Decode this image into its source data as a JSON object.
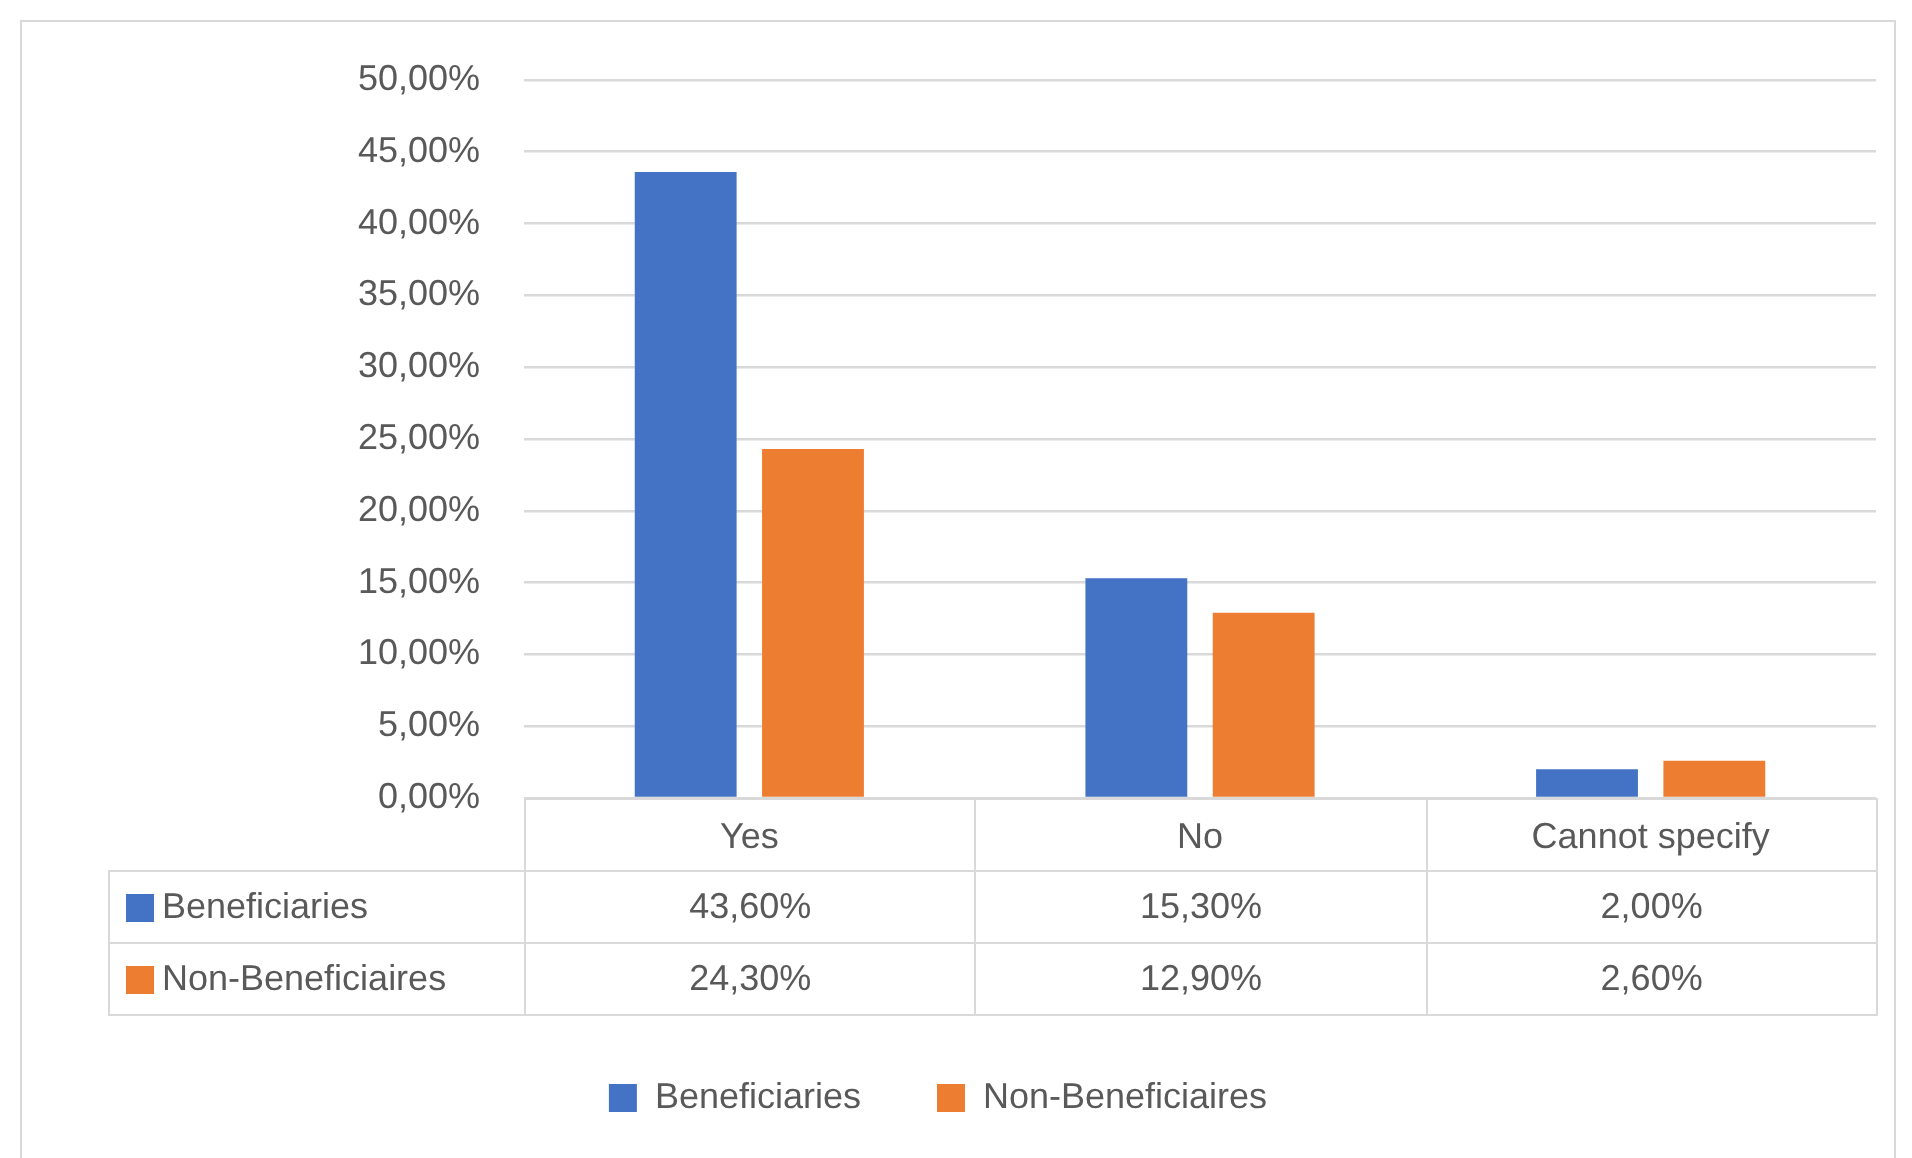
{
  "chart_data": {
    "type": "bar",
    "categories": [
      "Yes",
      "No",
      "Cannot specify"
    ],
    "series": [
      {
        "name": "Beneficiaries",
        "color": "#4472c4",
        "values": [
          43.6,
          15.3,
          2.0
        ],
        "value_labels": [
          "43,60%",
          "15,30%",
          "2,00%"
        ]
      },
      {
        "name": "Non-Beneficiaires",
        "color": "#ed7d31",
        "values": [
          24.3,
          12.9,
          2.6
        ],
        "value_labels": [
          "24,30%",
          "12,90%",
          "2,60%"
        ]
      }
    ],
    "ylim": [
      0,
      50
    ],
    "yticks": [
      {
        "value": 0,
        "label": "0,00%"
      },
      {
        "value": 5,
        "label": "5,00%"
      },
      {
        "value": 10,
        "label": "10,00%"
      },
      {
        "value": 15,
        "label": "15,00%"
      },
      {
        "value": 20,
        "label": "20,00%"
      },
      {
        "value": 25,
        "label": "25,00%"
      },
      {
        "value": 30,
        "label": "30,00%"
      },
      {
        "value": 35,
        "label": "35,00%"
      },
      {
        "value": 40,
        "label": "40,00%"
      },
      {
        "value": 45,
        "label": "45,00%"
      },
      {
        "value": 50,
        "label": "50,00%"
      }
    ],
    "grid": "y",
    "legend": "bottom"
  }
}
